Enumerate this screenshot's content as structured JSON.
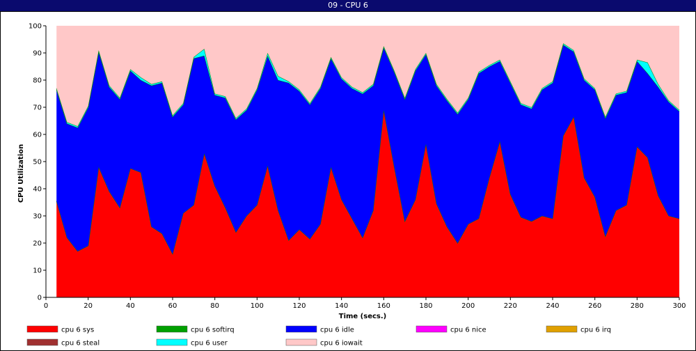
{
  "window": {
    "title": "09 - CPU 6"
  },
  "chart_data": {
    "type": "area",
    "stacked": true,
    "xlabel": "Time (secs.)",
    "ylabel": "CPU Utilization",
    "xlim": [
      0,
      300
    ],
    "ylim": [
      0,
      100
    ],
    "xticks": [
      0,
      20,
      40,
      60,
      80,
      100,
      120,
      140,
      160,
      180,
      200,
      220,
      240,
      260,
      280,
      300
    ],
    "yticks": [
      0,
      10,
      20,
      30,
      40,
      50,
      60,
      70,
      80,
      90,
      100
    ],
    "x": [
      5,
      10,
      15,
      20,
      25,
      30,
      35,
      40,
      45,
      50,
      55,
      60,
      65,
      70,
      75,
      80,
      85,
      90,
      95,
      100,
      105,
      110,
      115,
      120,
      125,
      130,
      135,
      140,
      145,
      150,
      155,
      160,
      165,
      170,
      175,
      180,
      185,
      190,
      195,
      200,
      205,
      210,
      215,
      220,
      225,
      230,
      235,
      240,
      245,
      250,
      255,
      260,
      265,
      270,
      275,
      280,
      285,
      290,
      295,
      300
    ],
    "series": [
      {
        "name": "cpu 6 sys",
        "color": "#ff0000",
        "values": [
          35.5,
          22,
          17,
          19,
          48,
          39,
          33,
          47.5,
          46,
          26,
          23.5,
          16,
          31,
          34,
          53,
          41,
          33,
          24,
          30,
          34,
          48.5,
          32,
          21,
          25,
          21.5,
          27,
          48,
          36,
          29,
          22,
          32,
          69,
          48,
          28,
          36,
          56.5,
          34.5,
          26,
          20,
          27,
          29,
          44,
          57.5,
          38,
          29.5,
          28,
          30,
          29,
          59.5,
          66.5,
          44,
          37,
          22.5,
          32,
          34,
          55.5,
          51.5,
          37.5,
          30,
          29
        ]
      },
      {
        "name": "cpu 6 softirq",
        "color": "#00a000",
        "values": [
          0,
          0,
          0,
          0,
          0,
          0,
          0,
          0,
          0,
          0,
          0,
          0,
          0,
          0,
          0,
          0,
          0,
          0,
          0,
          0,
          0,
          0,
          0,
          0,
          0,
          0,
          0,
          0,
          0,
          0,
          0,
          0,
          0,
          0,
          0,
          0,
          0,
          0,
          0,
          0,
          0,
          0,
          0,
          0,
          0,
          0,
          0,
          0,
          0,
          0,
          0,
          0,
          0,
          0,
          0,
          0,
          0,
          0,
          0,
          0
        ]
      },
      {
        "name": "cpu 6 idle",
        "color": "#0000ff",
        "values": [
          41,
          42,
          45.5,
          51,
          42.5,
          38.5,
          40,
          36,
          34,
          52,
          55.5,
          50.5,
          40,
          54,
          36,
          33.5,
          40.5,
          41.5,
          39,
          42.5,
          40.5,
          48,
          58,
          51,
          49.5,
          50,
          40,
          44.5,
          48,
          53,
          46,
          23,
          35,
          45,
          47.5,
          33,
          43.5,
          46.5,
          47.5,
          46,
          53.5,
          41,
          29.5,
          41,
          41.5,
          41.5,
          46.5,
          50,
          33.5,
          24,
          36,
          39.5,
          43.5,
          42.5,
          41.5,
          31.5,
          31,
          40,
          42,
          39.5
        ]
      },
      {
        "name": "cpu 6 nice",
        "color": "#ff00ff",
        "values": [
          0,
          0,
          0,
          0,
          0,
          0,
          0,
          0,
          0,
          0,
          0,
          0,
          0,
          0,
          0,
          0,
          0,
          0,
          0,
          0,
          0,
          0,
          0,
          0,
          0,
          0,
          0,
          0,
          0,
          0,
          0,
          0,
          0,
          0,
          0,
          0,
          0,
          0,
          0,
          0,
          0,
          0,
          0,
          0,
          0,
          0,
          0,
          0,
          0,
          0,
          0,
          0,
          0,
          0,
          0,
          0,
          0,
          0,
          0,
          0
        ]
      },
      {
        "name": "cpu 6 irq",
        "color": "#e0a000",
        "values": [
          0,
          0,
          0,
          0,
          0,
          0,
          0,
          0,
          0,
          0,
          0,
          0,
          0,
          0,
          0,
          0,
          0,
          0,
          0,
          0,
          0,
          0,
          0,
          0,
          0,
          0,
          0,
          0,
          0,
          0,
          0,
          0,
          0,
          0,
          0,
          0,
          0,
          0,
          0,
          0,
          0,
          0,
          0,
          0,
          0,
          0,
          0,
          0,
          0,
          0,
          0,
          0,
          0,
          0,
          0,
          0,
          0,
          0,
          0,
          0
        ]
      },
      {
        "name": "cpu 6 steal",
        "color": "#a03030",
        "values": [
          0,
          0,
          0,
          0,
          0,
          0,
          0,
          0,
          0,
          0,
          0,
          0,
          0,
          0,
          0,
          0,
          0,
          0,
          0,
          0,
          0,
          0,
          0,
          0,
          0,
          0,
          0,
          0,
          0,
          0,
          0,
          0,
          0,
          0,
          0,
          0,
          0,
          0,
          0,
          0,
          0,
          0,
          0,
          0,
          0,
          0,
          0,
          0,
          0,
          0,
          0,
          0,
          0,
          0,
          0,
          0,
          0,
          0,
          0,
          0
        ]
      },
      {
        "name": "cpu 6 user",
        "color": "#00ffff",
        "values": [
          0.5,
          0.5,
          0.5,
          0.5,
          0.5,
          0.5,
          0.5,
          0.5,
          1,
          0.5,
          0.5,
          0.5,
          0.5,
          0.5,
          2.5,
          0.5,
          0.5,
          0.5,
          0.5,
          0.5,
          1,
          1.5,
          0.5,
          0.5,
          0.5,
          0.5,
          0.5,
          0.5,
          0.5,
          0.5,
          0.5,
          0.5,
          0.5,
          0.5,
          0.5,
          0.5,
          0.5,
          0.5,
          0.5,
          0.5,
          0.5,
          0.5,
          0.5,
          0.5,
          0.5,
          0.5,
          0.5,
          0.5,
          0.5,
          0.5,
          0.5,
          0.5,
          0.5,
          0.5,
          0.5,
          0.5,
          4,
          1,
          0.5,
          0.5
        ]
      },
      {
        "name": "cpu 6 iowait",
        "color": "#ffc8c8",
        "values": [
          23,
          35.5,
          37,
          29.5,
          9,
          22,
          26.5,
          16,
          19,
          21.5,
          20.5,
          33,
          28.5,
          11.5,
          8.5,
          25,
          26,
          34,
          30.5,
          23,
          10,
          18.5,
          20.5,
          23.5,
          28.5,
          22.5,
          11.5,
          19,
          22.5,
          24.5,
          21.5,
          7.5,
          16.5,
          26.5,
          16,
          10,
          21.5,
          27,
          32,
          26.5,
          17,
          14.5,
          12.5,
          20.5,
          28.5,
          30,
          23,
          20.5,
          6.5,
          9,
          19.5,
          23,
          33.5,
          25,
          24,
          12.5,
          13.5,
          21.5,
          27.5,
          31
        ]
      }
    ],
    "legend_position": "bottom",
    "grid": false
  }
}
